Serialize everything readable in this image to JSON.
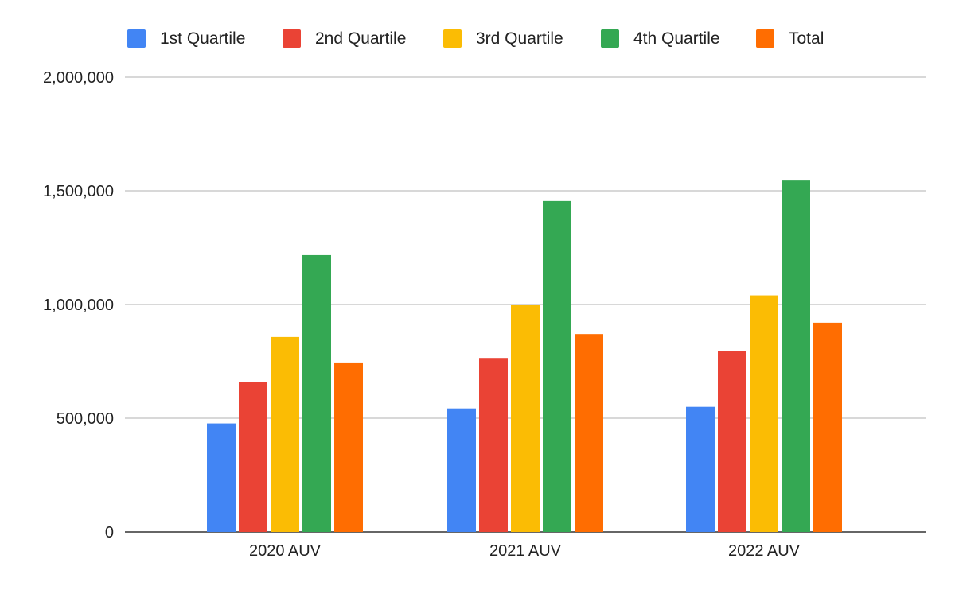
{
  "chart_data": {
    "type": "bar",
    "title": "",
    "xlabel": "",
    "ylabel": "",
    "categories": [
      "2020 AUV",
      "2021 AUV",
      "2022 AUV"
    ],
    "series": [
      {
        "name": "1st Quartile",
        "color": "#4285F4",
        "values": [
          477000,
          543000,
          550000
        ]
      },
      {
        "name": "2nd Quartile",
        "color": "#EA4335",
        "values": [
          660000,
          765000,
          795000
        ]
      },
      {
        "name": "3rd Quartile",
        "color": "#FBBC04",
        "values": [
          857000,
          1000000,
          1040000
        ]
      },
      {
        "name": "4th Quartile",
        "color": "#34A853",
        "values": [
          1217000,
          1455000,
          1545000
        ]
      },
      {
        "name": "Total",
        "color": "#FF6D01",
        "values": [
          745000,
          870000,
          920000
        ]
      }
    ],
    "ylim": [
      0,
      2000000
    ],
    "yticks": [
      0,
      500000,
      1000000,
      1500000,
      2000000
    ],
    "ytick_labels": [
      "0",
      "500,000",
      "1,000,000",
      "1,500,000",
      "2,000,000"
    ],
    "legend_position": "top",
    "grid": true
  }
}
